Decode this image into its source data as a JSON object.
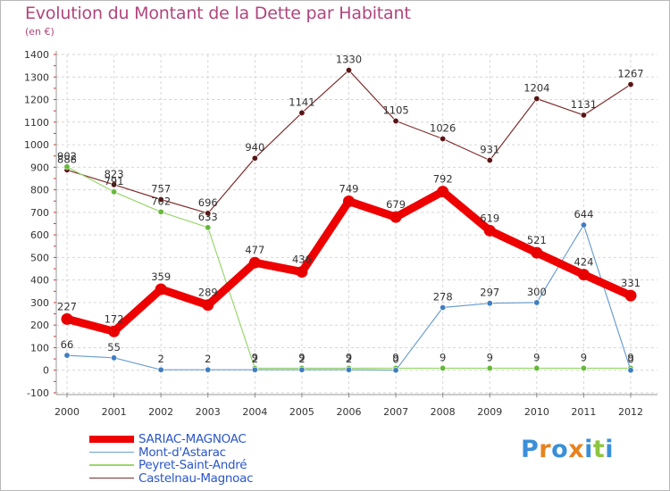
{
  "title": "Evolution du Montant de la Dette par Habitant",
  "unit_label": "(en €)",
  "logo": {
    "text": "Proxiti",
    "colors": [
      "#3b8fd9",
      "#e8821e",
      "#3b8fd9",
      "#e8821e",
      "#3b8fd9",
      "#8cc63f",
      "#3b8fd9"
    ]
  },
  "chart_data": {
    "type": "line",
    "title": "Evolution du Montant de la Dette par Habitant",
    "ylabel": "(en €)",
    "xlabel": "",
    "x": [
      "2000",
      "2001",
      "2002",
      "2003",
      "2004",
      "2005",
      "2006",
      "2007",
      "2008",
      "2009",
      "2010",
      "2011",
      "2012"
    ],
    "ylim": [
      -100,
      1400
    ],
    "yticks": [
      -100,
      0,
      100,
      200,
      300,
      400,
      500,
      600,
      700,
      800,
      900,
      1000,
      1100,
      1200,
      1300,
      1400
    ],
    "legend_position": "bottom-left",
    "series": [
      {
        "name": "Castelnau-Magnoac",
        "color": "#7f2f2f",
        "marker": "#5a1414",
        "width": 1.2,
        "values": [
          888,
          823,
          757,
          696,
          940,
          1141,
          1330,
          1105,
          1026,
          931,
          1204,
          1131,
          1267
        ],
        "labels": [
          "888",
          "823",
          "757",
          "696",
          "940",
          "1141",
          "1330",
          "1105",
          "1026",
          "931",
          "1204",
          "1131",
          "1267"
        ]
      },
      {
        "name": "Peyret-Saint-André",
        "color": "#9ad66d",
        "marker": "#67b83a",
        "width": 1.2,
        "values": [
          902,
          791,
          702,
          633,
          9,
          9,
          9,
          9,
          9,
          9,
          9,
          9,
          9
        ],
        "labels": [
          "902",
          "791",
          "702",
          "633",
          "9",
          "9",
          "9",
          "9",
          "9",
          "9",
          "9",
          "9",
          "9"
        ]
      },
      {
        "name": "Mont-d'Astarac",
        "color": "#6d9fcf",
        "marker": "#3f7fc0",
        "width": 1.2,
        "values": [
          66,
          55,
          2,
          2,
          2,
          2,
          2,
          0,
          278,
          297,
          300,
          644,
          0
        ],
        "labels": [
          "66",
          "55",
          "2",
          "2",
          "2",
          "2",
          "2",
          "0",
          "278",
          "297",
          "300",
          "644",
          "0"
        ]
      },
      {
        "name": "SARIAC-MAGNOAC",
        "color": "#ee0000",
        "marker": "#e80000",
        "width": 9,
        "values": [
          227,
          172,
          359,
          289,
          477,
          436,
          749,
          679,
          792,
          619,
          521,
          424,
          331
        ],
        "labels": [
          "227",
          "172",
          "359",
          "289",
          "477",
          "436",
          "749",
          "679",
          "792",
          "619",
          "521",
          "424",
          "331"
        ]
      }
    ],
    "legend": [
      "SARIAC-MAGNOAC",
      "Mont-d'Astarac",
      "Peyret-Saint-André",
      "Castelnau-Magnoac"
    ]
  }
}
